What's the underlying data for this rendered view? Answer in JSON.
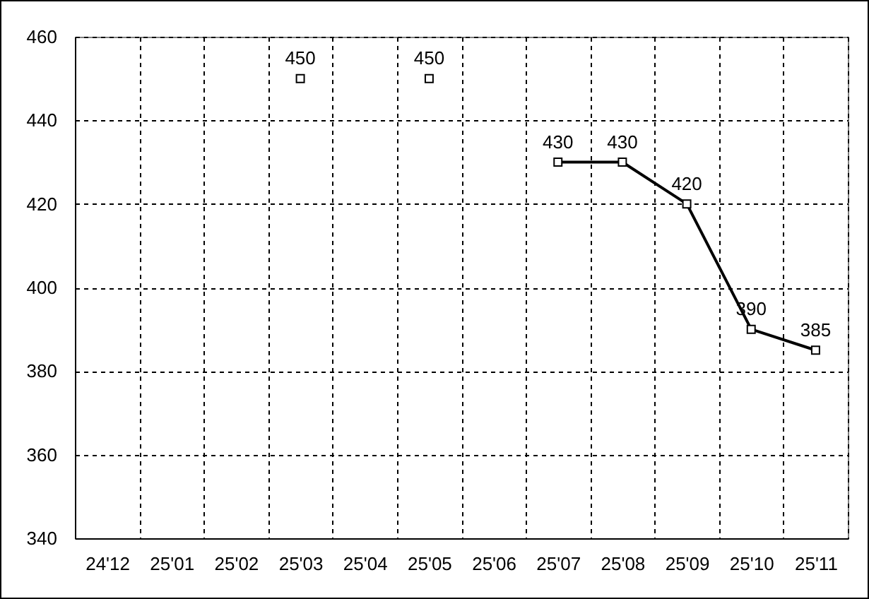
{
  "chart_data": {
    "type": "line",
    "categories": [
      "24'12",
      "25'01",
      "25'02",
      "25'03",
      "25'04",
      "25'05",
      "25'06",
      "25'07",
      "25'08",
      "25'09",
      "25'10",
      "25'11"
    ],
    "series": [
      {
        "color": "#000000",
        "values": [
          null,
          null,
          null,
          450,
          null,
          450,
          null,
          430,
          430,
          420,
          390,
          385
        ]
      }
    ],
    "ylim": [
      340,
      460
    ],
    "yticks": [
      340,
      360,
      380,
      400,
      420,
      440,
      460
    ],
    "grid": true,
    "marker": "square",
    "line_style": "solid",
    "data_labels": true
  }
}
